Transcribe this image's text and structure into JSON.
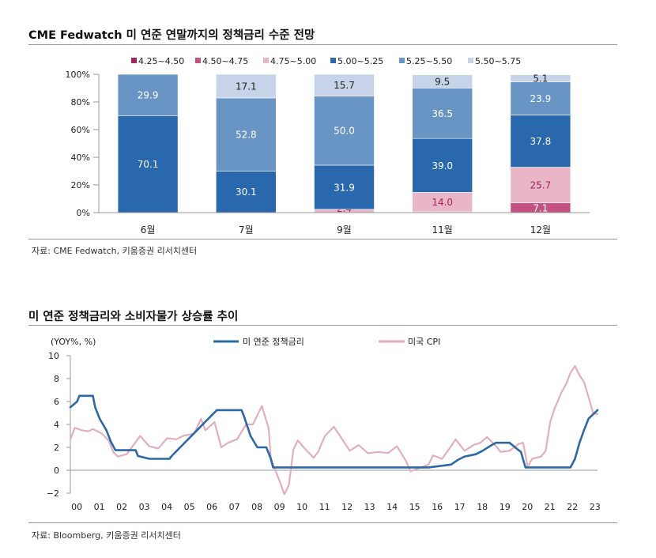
{
  "charts": {
    "bar": {
      "title": "CME Fedwatch 미 연준 연말까지의 정책금리 수준 전망",
      "source": "자료: CME Fedwatch, 키움증권 리서치센터"
    },
    "line": {
      "title": "미 연준 정책금리와 소비자물가 상승률 추이",
      "source": "자료: Bloomberg, 키움증권 리서치센터"
    }
  },
  "colors": {
    "r425": "#a3245a",
    "r450": "#c45180",
    "r475": "#e8b6c6",
    "r500": "#2a68ad",
    "r525": "#6995c4",
    "r550": "#c6d3e8",
    "fed": "#2d68a5",
    "cpi": "#e2aec0"
  },
  "chart_data": [
    {
      "type": "bar",
      "stacked": true,
      "title": "CME Fedwatch 미 연준 연말까지의 정책금리 수준 전망",
      "categories": [
        "6월",
        "7월",
        "9월",
        "11월",
        "12월"
      ],
      "y_ticks": [
        "0%",
        "20%",
        "40%",
        "60%",
        "80%",
        "100%"
      ],
      "ylim": [
        0,
        100
      ],
      "legend_position": "top",
      "series": [
        {
          "name": "4.25~4.50",
          "color_key": "r425",
          "values": [
            0,
            0,
            0,
            0,
            0
          ],
          "labels": [
            "",
            "",
            "",
            "",
            ""
          ]
        },
        {
          "name": "4.50~4.75",
          "color_key": "r450",
          "values": [
            0,
            0,
            0,
            0.6,
            7.1
          ],
          "labels": [
            "",
            "",
            "",
            "",
            "7.1"
          ]
        },
        {
          "name": "4.75~5.00",
          "color_key": "r475",
          "values": [
            0,
            0,
            2.4,
            14.0,
            25.7
          ],
          "labels": [
            "",
            "",
            "2.4",
            "14.0",
            "25.7"
          ]
        },
        {
          "name": "5.00~5.25",
          "color_key": "r500",
          "values": [
            70.1,
            30.1,
            31.9,
            39.0,
            37.8
          ],
          "labels": [
            "70.1",
            "30.1",
            "31.9",
            "39.0",
            "37.8"
          ]
        },
        {
          "name": "5.25~5.50",
          "color_key": "r525",
          "values": [
            29.9,
            52.8,
            50.0,
            36.5,
            23.9
          ],
          "labels": [
            "29.9",
            "52.8",
            "50.0",
            "36.5",
            "23.9"
          ]
        },
        {
          "name": "5.50~5.75",
          "color_key": "r550",
          "values": [
            0,
            17.1,
            15.7,
            9.5,
            5.1
          ],
          "labels": [
            "",
            "17.1",
            "15.7",
            "9.5",
            "5.1"
          ]
        }
      ]
    },
    {
      "type": "line",
      "title": "미 연준 정책금리와 소비자물가 상승률 추이",
      "ylabel": "(YOY%, %)",
      "ylim": [
        -2,
        10
      ],
      "y_ticks": [
        "−2",
        "0",
        "2",
        "4",
        "6",
        "8",
        "10"
      ],
      "xlim": [
        2000,
        2023.4
      ],
      "x_ticks": [
        "00",
        "01",
        "02",
        "03",
        "04",
        "05",
        "06",
        "07",
        "08",
        "09",
        "10",
        "11",
        "12",
        "13",
        "14",
        "15",
        "16",
        "17",
        "18",
        "19",
        "20",
        "21",
        "22",
        "23"
      ],
      "legend_position": "top",
      "series": [
        {
          "name": "미 연준 정책금리",
          "color_key": "fed",
          "points": [
            [
              2000.0,
              5.5
            ],
            [
              2000.3,
              6.0
            ],
            [
              2000.4,
              6.5
            ],
            [
              2001.0,
              6.5
            ],
            [
              2001.1,
              5.5
            ],
            [
              2001.3,
              4.5
            ],
            [
              2001.6,
              3.5
            ],
            [
              2001.8,
              2.5
            ],
            [
              2002.0,
              1.75
            ],
            [
              2002.9,
              1.75
            ],
            [
              2003.0,
              1.25
            ],
            [
              2003.5,
              1.0
            ],
            [
              2004.4,
              1.0
            ],
            [
              2004.5,
              1.25
            ],
            [
              2005.0,
              2.25
            ],
            [
              2005.5,
              3.25
            ],
            [
              2006.0,
              4.25
            ],
            [
              2006.5,
              5.25
            ],
            [
              2007.6,
              5.25
            ],
            [
              2007.7,
              4.75
            ],
            [
              2008.0,
              3.0
            ],
            [
              2008.3,
              2.0
            ],
            [
              2008.7,
              2.0
            ],
            [
              2008.9,
              1.0
            ],
            [
              2009.0,
              0.25
            ],
            [
              2015.9,
              0.25
            ],
            [
              2016.9,
              0.5
            ],
            [
              2017.2,
              0.9
            ],
            [
              2017.5,
              1.2
            ],
            [
              2018.0,
              1.4
            ],
            [
              2018.3,
              1.7
            ],
            [
              2018.7,
              2.2
            ],
            [
              2018.9,
              2.4
            ],
            [
              2019.5,
              2.4
            ],
            [
              2019.8,
              1.9
            ],
            [
              2020.0,
              1.6
            ],
            [
              2020.2,
              0.25
            ],
            [
              2022.2,
              0.25
            ],
            [
              2022.4,
              1.0
            ],
            [
              2022.6,
              2.4
            ],
            [
              2022.8,
              3.5
            ],
            [
              2023.0,
              4.5
            ],
            [
              2023.4,
              5.25
            ]
          ]
        },
        {
          "name": "미국 CPI",
          "color_key": "cpi",
          "points": [
            [
              2000.0,
              2.7
            ],
            [
              2000.2,
              3.7
            ],
            [
              2000.5,
              3.5
            ],
            [
              2000.8,
              3.4
            ],
            [
              2001.0,
              3.6
            ],
            [
              2001.4,
              3.2
            ],
            [
              2001.7,
              2.6
            ],
            [
              2001.9,
              1.6
            ],
            [
              2002.1,
              1.2
            ],
            [
              2002.5,
              1.4
            ],
            [
              2002.8,
              2.2
            ],
            [
              2003.1,
              3.0
            ],
            [
              2003.5,
              2.1
            ],
            [
              2003.9,
              1.9
            ],
            [
              2004.3,
              2.8
            ],
            [
              2004.7,
              2.7
            ],
            [
              2005.0,
              3.0
            ],
            [
              2005.5,
              3.2
            ],
            [
              2005.8,
              4.5
            ],
            [
              2006.0,
              3.5
            ],
            [
              2006.4,
              4.2
            ],
            [
              2006.7,
              2.0
            ],
            [
              2007.0,
              2.4
            ],
            [
              2007.4,
              2.7
            ],
            [
              2007.8,
              4.0
            ],
            [
              2008.1,
              4.0
            ],
            [
              2008.5,
              5.6
            ],
            [
              2008.8,
              3.7
            ],
            [
              2008.9,
              1.0
            ],
            [
              2009.1,
              0.0
            ],
            [
              2009.3,
              -1.0
            ],
            [
              2009.5,
              -2.1
            ],
            [
              2009.7,
              -1.3
            ],
            [
              2009.9,
              1.8
            ],
            [
              2010.1,
              2.6
            ],
            [
              2010.4,
              1.9
            ],
            [
              2010.8,
              1.1
            ],
            [
              2011.0,
              1.6
            ],
            [
              2011.3,
              3.0
            ],
            [
              2011.7,
              3.8
            ],
            [
              2012.0,
              2.9
            ],
            [
              2012.4,
              1.7
            ],
            [
              2012.8,
              2.2
            ],
            [
              2013.2,
              1.5
            ],
            [
              2013.7,
              1.6
            ],
            [
              2014.1,
              1.5
            ],
            [
              2014.5,
              2.1
            ],
            [
              2014.9,
              0.8
            ],
            [
              2015.1,
              -0.1
            ],
            [
              2015.5,
              0.2
            ],
            [
              2015.9,
              0.5
            ],
            [
              2016.1,
              1.3
            ],
            [
              2016.5,
              1.0
            ],
            [
              2016.9,
              2.1
            ],
            [
              2017.1,
              2.7
            ],
            [
              2017.5,
              1.7
            ],
            [
              2017.9,
              2.2
            ],
            [
              2018.2,
              2.4
            ],
            [
              2018.5,
              2.9
            ],
            [
              2018.9,
              2.1
            ],
            [
              2019.1,
              1.6
            ],
            [
              2019.5,
              1.7
            ],
            [
              2019.9,
              2.3
            ],
            [
              2020.1,
              2.4
            ],
            [
              2020.3,
              0.3
            ],
            [
              2020.5,
              1.0
            ],
            [
              2020.9,
              1.2
            ],
            [
              2021.1,
              1.7
            ],
            [
              2021.3,
              4.2
            ],
            [
              2021.5,
              5.4
            ],
            [
              2021.8,
              6.8
            ],
            [
              2022.0,
              7.5
            ],
            [
              2022.2,
              8.5
            ],
            [
              2022.4,
              9.1
            ],
            [
              2022.6,
              8.3
            ],
            [
              2022.8,
              7.7
            ],
            [
              2023.0,
              6.4
            ],
            [
              2023.2,
              5.0
            ],
            [
              2023.4,
              4.9
            ]
          ]
        }
      ]
    }
  ]
}
